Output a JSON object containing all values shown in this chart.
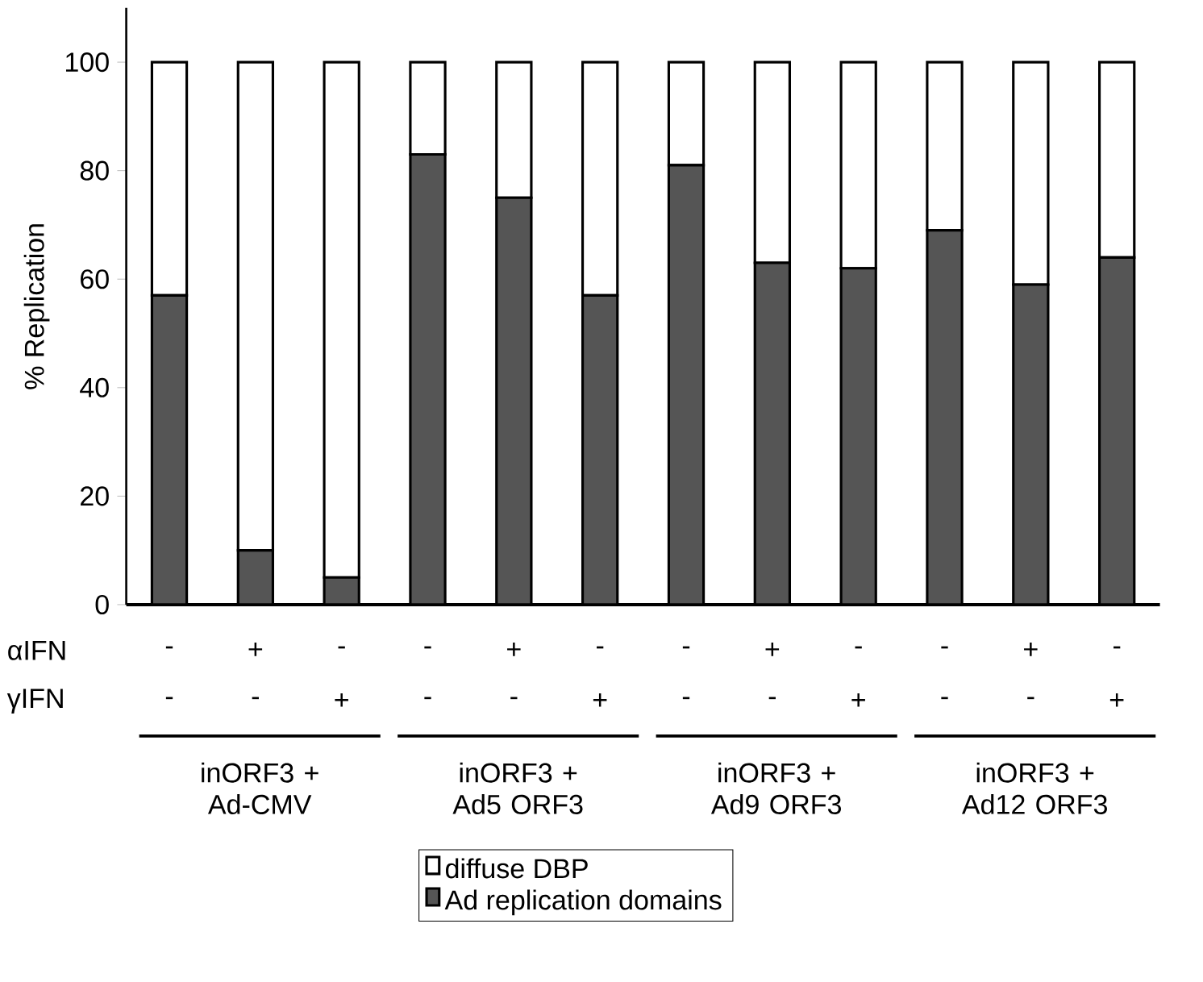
{
  "chart_data": {
    "type": "bar",
    "stacked": true,
    "ylabel": "% Replication",
    "categories": [
      null,
      null,
      null,
      null,
      null,
      null,
      null,
      null,
      null,
      null,
      null,
      null
    ],
    "series": [
      {
        "name": "Ad replication domains",
        "color": "#555555",
        "values": [
          57,
          10,
          5,
          83,
          75,
          57,
          81,
          63,
          62,
          69,
          59,
          64
        ]
      },
      {
        "name": "diffuse DBP",
        "color": "#ffffff",
        "values": [
          43,
          90,
          95,
          17,
          25,
          43,
          19,
          37,
          38,
          31,
          41,
          36
        ]
      }
    ],
    "ylim": [
      0,
      110
    ],
    "yticks": [
      0,
      20,
      40,
      60,
      80,
      100
    ],
    "grid": false,
    "legend": "bottom",
    "annotations": [
      "αIFN",
      "γIFN",
      "-",
      "+",
      "-",
      "-",
      "+",
      "-",
      "-",
      "+",
      "-",
      "-",
      "+",
      "-",
      "-",
      "-",
      "+",
      "-",
      "-",
      "+",
      "-",
      "-",
      "+",
      "-",
      "-",
      "+",
      "inORF3 + Ad-CMV",
      "inORF3 + Ad5 ORF3",
      "inORF3 + Ad9 ORF3",
      "inORF3 + Ad12 ORF3"
    ]
  }
}
